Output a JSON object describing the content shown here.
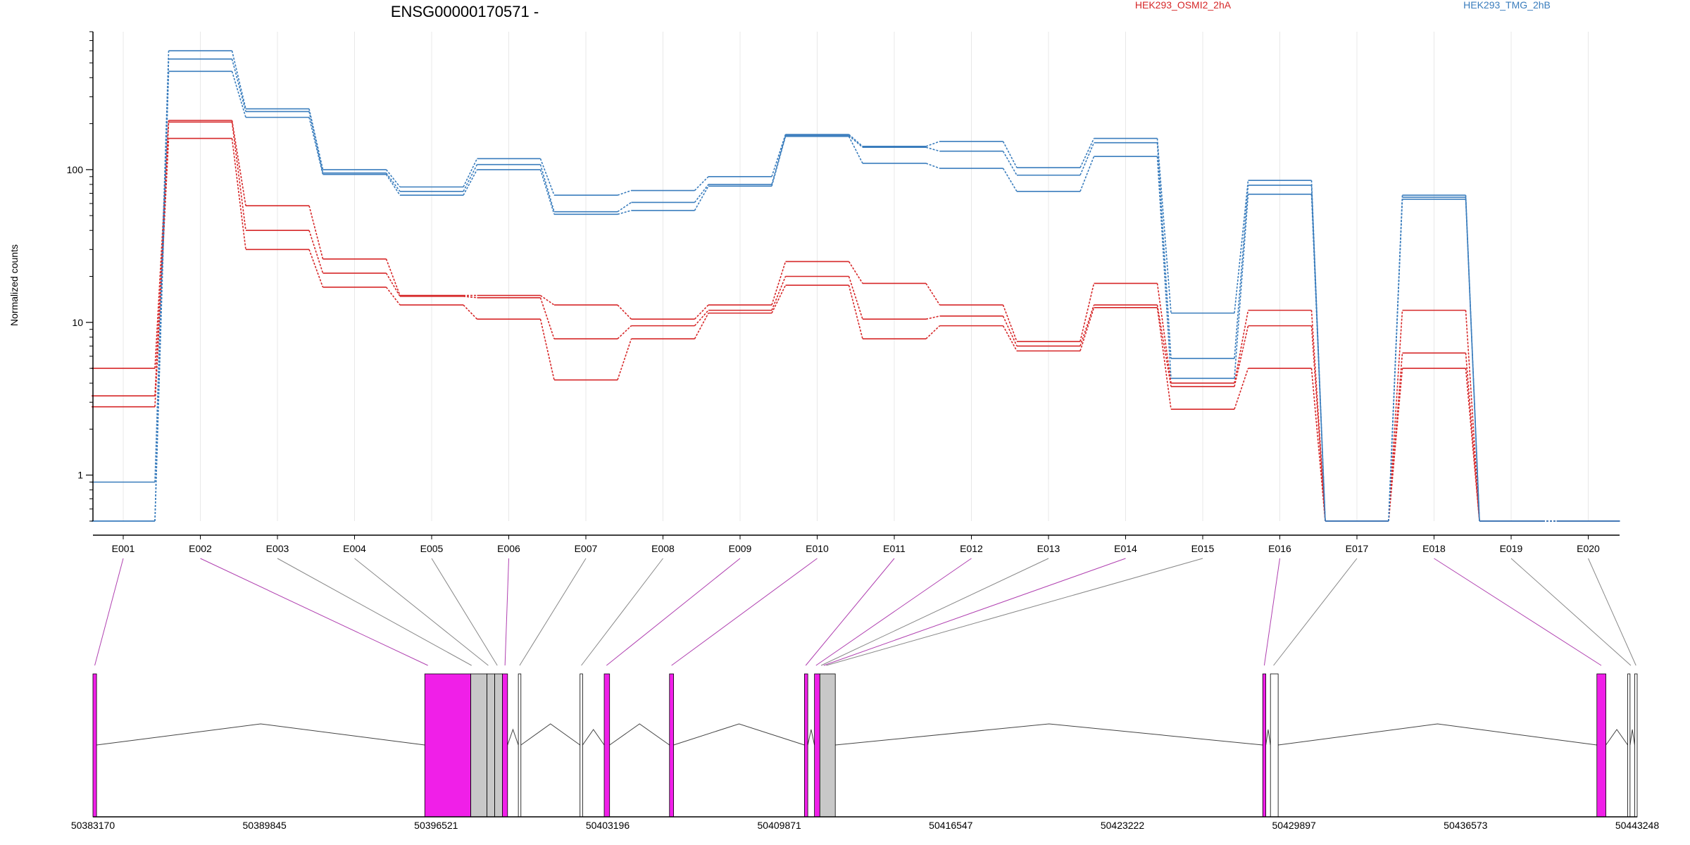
{
  "chart_data": {
    "type": "line",
    "title": "ENSG00000170571 -",
    "ylabel": "Normalized counts",
    "y_scale": "log",
    "ylim": [
      0.5,
      800
    ],
    "y_ticks": [
      {
        "value": 1,
        "label": "1"
      },
      {
        "value": 10,
        "label": "10"
      },
      {
        "value": 100,
        "label": "100"
      }
    ],
    "grid": "vertical-at-exons",
    "legend_placement": "top-right",
    "categories": [
      "E001",
      "E002",
      "E003",
      "E004",
      "E005",
      "E006",
      "E007",
      "E008",
      "E009",
      "E010",
      "E011",
      "E012",
      "E013",
      "E014",
      "E015",
      "E016",
      "E017",
      "E018",
      "E019",
      "E020"
    ],
    "series": [
      {
        "name": "HEK293_OSMI2_2hA",
        "color": "#d62728",
        "values": [
          5,
          210,
          58,
          26,
          15,
          15,
          13,
          10.5,
          13,
          25,
          18,
          13,
          7.5,
          18,
          4,
          12,
          0.5,
          12,
          0.5,
          0.5
        ]
      },
      {
        "name": "",
        "color": "#d62728",
        "values": [
          3.3,
          205,
          40,
          21,
          14.8,
          14.5,
          7.8,
          9.5,
          12,
          20,
          10.5,
          11,
          7,
          13,
          3.8,
          9.5,
          0.5,
          6.3,
          0.5,
          0.5
        ]
      },
      {
        "name": "",
        "color": "#d62728",
        "values": [
          2.8,
          160,
          30,
          17,
          13,
          10.5,
          4.2,
          7.8,
          11.5,
          17.5,
          7.8,
          9.5,
          6.5,
          12.5,
          2.7,
          5,
          0.5,
          5,
          0.5,
          0.5
        ]
      },
      {
        "name": "HEK293_TMG_2hB",
        "color": "#3a7dbd",
        "values": [
          0.9,
          600,
          250,
          100,
          77,
          118,
          68,
          73,
          90,
          170,
          142,
          153,
          103,
          160,
          11.5,
          85,
          0.5,
          68,
          0.5,
          0.5
        ]
      },
      {
        "name": "",
        "color": "#3a7dbd",
        "values": [
          0.5,
          530,
          240,
          95,
          72,
          108,
          53,
          61,
          80,
          167,
          140,
          132,
          92,
          150,
          5.8,
          79,
          0.5,
          66,
          0.5,
          0.5
        ]
      },
      {
        "name": "",
        "color": "#3a7dbd",
        "values": [
          0.5,
          440,
          220,
          93,
          68,
          100,
          51,
          54,
          78,
          165,
          110,
          102,
          72,
          122,
          4.3,
          69,
          0.5,
          64,
          0.5,
          0.5
        ]
      }
    ],
    "gene_model": {
      "coordinate_ticks": [
        "50383170",
        "50389845",
        "50396521",
        "50403196",
        "50409871",
        "50416547",
        "50423222",
        "50429897",
        "50436573",
        "50443248"
      ],
      "coordinate_range": [
        50383170,
        50443248
      ],
      "highlight_color": "#f01fe8",
      "exons": [
        {
          "start": 50383170,
          "end": 50383310,
          "type": "highlight"
        },
        {
          "start": 50396080,
          "end": 50397870,
          "type": "highlight"
        },
        {
          "start": 50397870,
          "end": 50398500,
          "type": "gray"
        },
        {
          "start": 50398500,
          "end": 50398800,
          "type": "gray"
        },
        {
          "start": 50398800,
          "end": 50399100,
          "type": "gray"
        },
        {
          "start": 50399100,
          "end": 50399300,
          "type": "highlight"
        },
        {
          "start": 50399720,
          "end": 50399820,
          "type": "white"
        },
        {
          "start": 50402120,
          "end": 50402220,
          "type": "white"
        },
        {
          "start": 50403060,
          "end": 50403270,
          "type": "highlight"
        },
        {
          "start": 50405600,
          "end": 50405760,
          "type": "highlight"
        },
        {
          "start": 50410850,
          "end": 50410980,
          "type": "highlight"
        },
        {
          "start": 50411240,
          "end": 50411450,
          "type": "highlight"
        },
        {
          "start": 50411450,
          "end": 50412050,
          "type": "gray"
        },
        {
          "start": 50428680,
          "end": 50428800,
          "type": "highlight"
        },
        {
          "start": 50428980,
          "end": 50429280,
          "type": "white"
        },
        {
          "start": 50441680,
          "end": 50442030,
          "type": "highlight"
        },
        {
          "start": 50442880,
          "end": 50442970,
          "type": "white"
        },
        {
          "start": 50443150,
          "end": 50443248,
          "type": "white"
        }
      ],
      "exon_links": [
        {
          "exon": "E001",
          "position": 50383240,
          "color": "highlight"
        },
        {
          "exon": "E002",
          "position": 50396200,
          "color": "highlight"
        },
        {
          "exon": "E003",
          "position": 50397900,
          "color": "gray"
        },
        {
          "exon": "E004",
          "position": 50398550,
          "color": "gray"
        },
        {
          "exon": "E005",
          "position": 50398900,
          "color": "gray"
        },
        {
          "exon": "E006",
          "position": 50399200,
          "color": "highlight"
        },
        {
          "exon": "E007",
          "position": 50399770,
          "color": "gray"
        },
        {
          "exon": "E008",
          "position": 50402170,
          "color": "gray"
        },
        {
          "exon": "E009",
          "position": 50403150,
          "color": "highlight"
        },
        {
          "exon": "E010",
          "position": 50405680,
          "color": "highlight"
        },
        {
          "exon": "E011",
          "position": 50410900,
          "color": "highlight"
        },
        {
          "exon": "E012",
          "position": 50411300,
          "color": "highlight"
        },
        {
          "exon": "E013",
          "position": 50411500,
          "color": "gray"
        },
        {
          "exon": "E014",
          "position": 50411600,
          "color": "highlight"
        },
        {
          "exon": "E015",
          "position": 50411700,
          "color": "gray"
        },
        {
          "exon": "E016",
          "position": 50428740,
          "color": "highlight"
        },
        {
          "exon": "E017",
          "position": 50429100,
          "color": "gray"
        },
        {
          "exon": "E018",
          "position": 50441850,
          "color": "highlight"
        },
        {
          "exon": "E019",
          "position": 50443000,
          "color": "gray"
        },
        {
          "exon": "E020",
          "position": 50443200,
          "color": "gray"
        }
      ]
    }
  }
}
